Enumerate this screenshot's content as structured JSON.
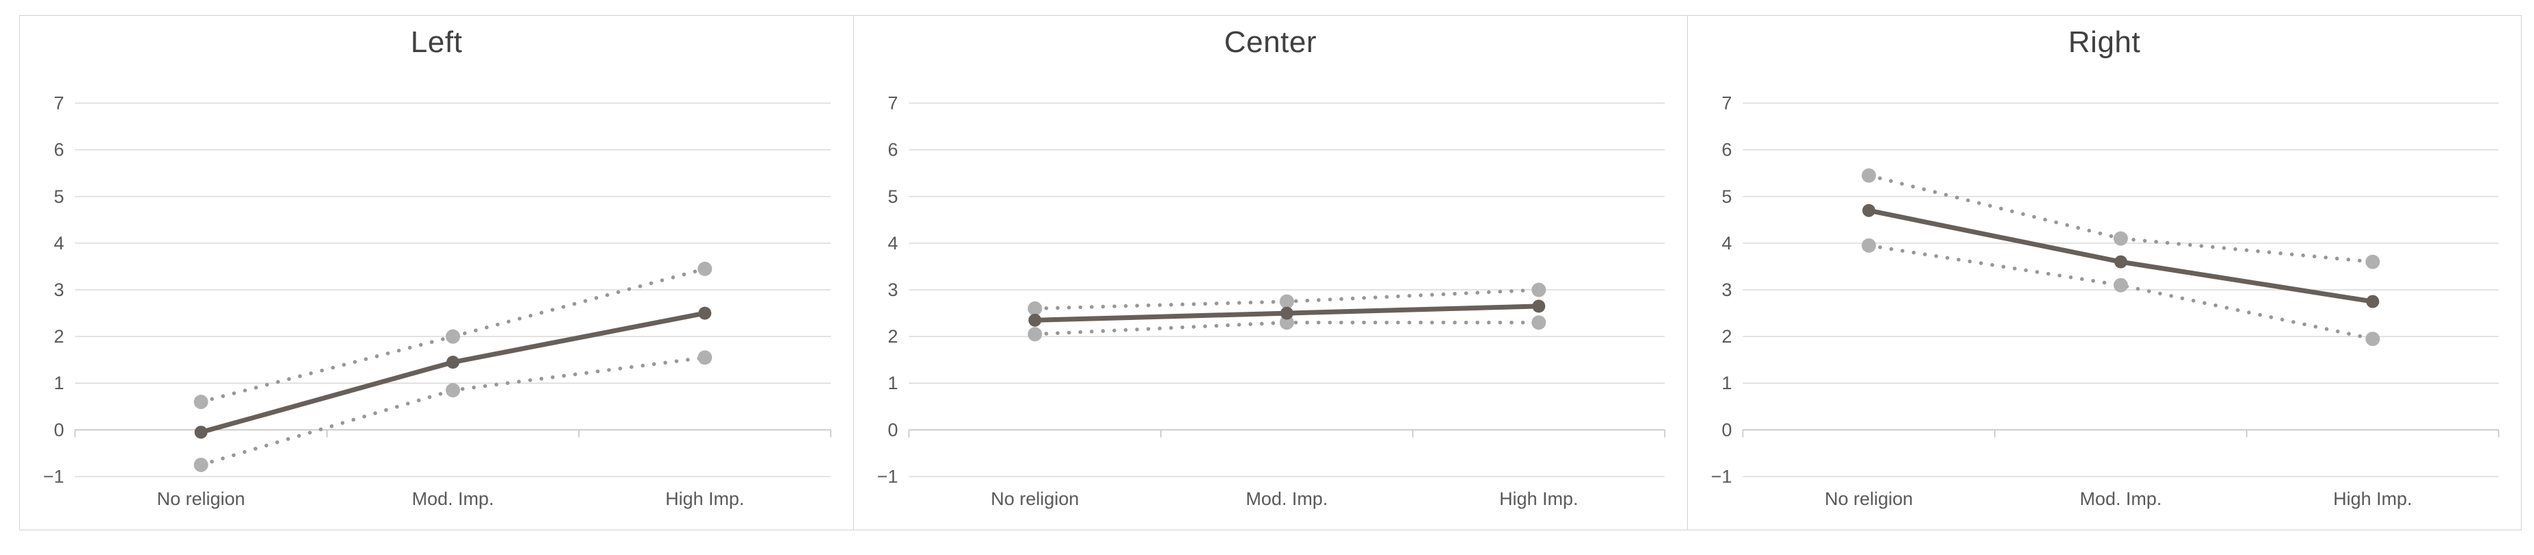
{
  "chart_data": [
    {
      "type": "line",
      "title": "Left",
      "categories": [
        "No religion",
        "Mod. Imp.",
        "High Imp."
      ],
      "series": [
        {
          "name": "upper_ci",
          "style": "dotted",
          "values": [
            0.6,
            2.0,
            3.45
          ]
        },
        {
          "name": "lower_ci",
          "style": "dotted",
          "values": [
            -0.75,
            0.85,
            1.55
          ]
        },
        {
          "name": "estimate",
          "style": "solid",
          "values": [
            -0.05,
            1.45,
            2.5
          ]
        }
      ],
      "ylim": [
        -1,
        7
      ],
      "ytick_step": 1,
      "grid": "horizontal",
      "legend": "none"
    },
    {
      "type": "line",
      "title": "Center",
      "categories": [
        "No religion",
        "Mod. Imp.",
        "High Imp."
      ],
      "series": [
        {
          "name": "upper_ci",
          "style": "dotted",
          "values": [
            2.6,
            2.75,
            3.0
          ]
        },
        {
          "name": "lower_ci",
          "style": "dotted",
          "values": [
            2.05,
            2.3,
            2.3
          ]
        },
        {
          "name": "estimate",
          "style": "solid",
          "values": [
            2.35,
            2.5,
            2.65
          ]
        }
      ],
      "ylim": [
        -1,
        7
      ],
      "ytick_step": 1,
      "grid": "horizontal",
      "legend": "none"
    },
    {
      "type": "line",
      "title": "Right",
      "categories": [
        "No religion",
        "Mod. Imp.",
        "High Imp."
      ],
      "series": [
        {
          "name": "upper_ci",
          "style": "dotted",
          "values": [
            5.45,
            4.1,
            3.6
          ]
        },
        {
          "name": "lower_ci",
          "style": "dotted",
          "values": [
            3.95,
            3.1,
            1.95
          ]
        },
        {
          "name": "estimate",
          "style": "solid",
          "values": [
            4.7,
            3.6,
            2.75
          ]
        }
      ],
      "ylim": [
        -1,
        7
      ],
      "ytick_step": 1,
      "grid": "horizontal",
      "legend": "none"
    }
  ],
  "colors": {
    "panel_border": "#d0d0d0",
    "gridline": "#d9d9d9",
    "axis_line": "#c2c2c2",
    "tick_label": "#595959",
    "title": "#404040",
    "estimate_line": "#675f5a",
    "ci_dot": "#979797",
    "ci_marker": "#b0b0b0"
  }
}
